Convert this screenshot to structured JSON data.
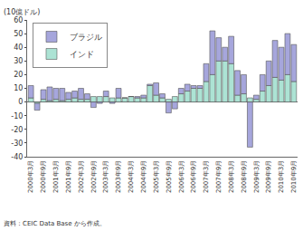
{
  "chart_data": {
    "type": "bar",
    "stacked": true,
    "y_label": "(10億ドル)",
    "source": "資料：CEIC Data Base から作成。",
    "categories": [
      "2000年3月",
      null,
      "2000年9月",
      null,
      "2001年3月",
      null,
      "2001年9月",
      null,
      "2002年3月",
      null,
      "2002年9月",
      null,
      "2003年3月",
      null,
      "2003年9月",
      null,
      "2004年3月",
      null,
      "2004年9月",
      null,
      "2005年3月",
      null,
      "2005年9月",
      null,
      "2006年3月",
      null,
      "2006年9月",
      null,
      "2007年3月",
      null,
      "2007年9月",
      null,
      "2008年3月",
      null,
      "2008年9月",
      null,
      "2009年3月",
      null,
      "2009年9月",
      null,
      "2010年3月",
      null,
      "2010年9月"
    ],
    "series": [
      {
        "name": "インド",
        "color": "#ace3d4",
        "values": [
          3,
          -1,
          2,
          1,
          2,
          1,
          2,
          3,
          2,
          2,
          4,
          4,
          4,
          3,
          3,
          3,
          4,
          3,
          3,
          12,
          5,
          3,
          2,
          4,
          6,
          8,
          10,
          10,
          15,
          20,
          30,
          30,
          28,
          5,
          6,
          3,
          2,
          8,
          12,
          18,
          16,
          20,
          15
        ]
      },
      {
        "name": "ブラジル",
        "color": "#a6a6dc",
        "values": [
          9,
          -5,
          7,
          10,
          8,
          9,
          5,
          5,
          8,
          4,
          -4,
          -1,
          4,
          -1,
          7,
          0,
          0,
          1,
          2,
          1,
          9,
          3,
          -8,
          -5,
          4,
          5,
          2,
          2,
          13,
          32,
          17,
          10,
          20,
          18,
          14,
          -33,
          3,
          12,
          18,
          27,
          24,
          30,
          27
        ]
      }
    ],
    "ylim": [
      -40,
      60
    ],
    "yticks": [
      -40,
      -30,
      -20,
      -10,
      0,
      10,
      20,
      30,
      40,
      50,
      60
    ],
    "grid": false,
    "legend": "upper left"
  }
}
